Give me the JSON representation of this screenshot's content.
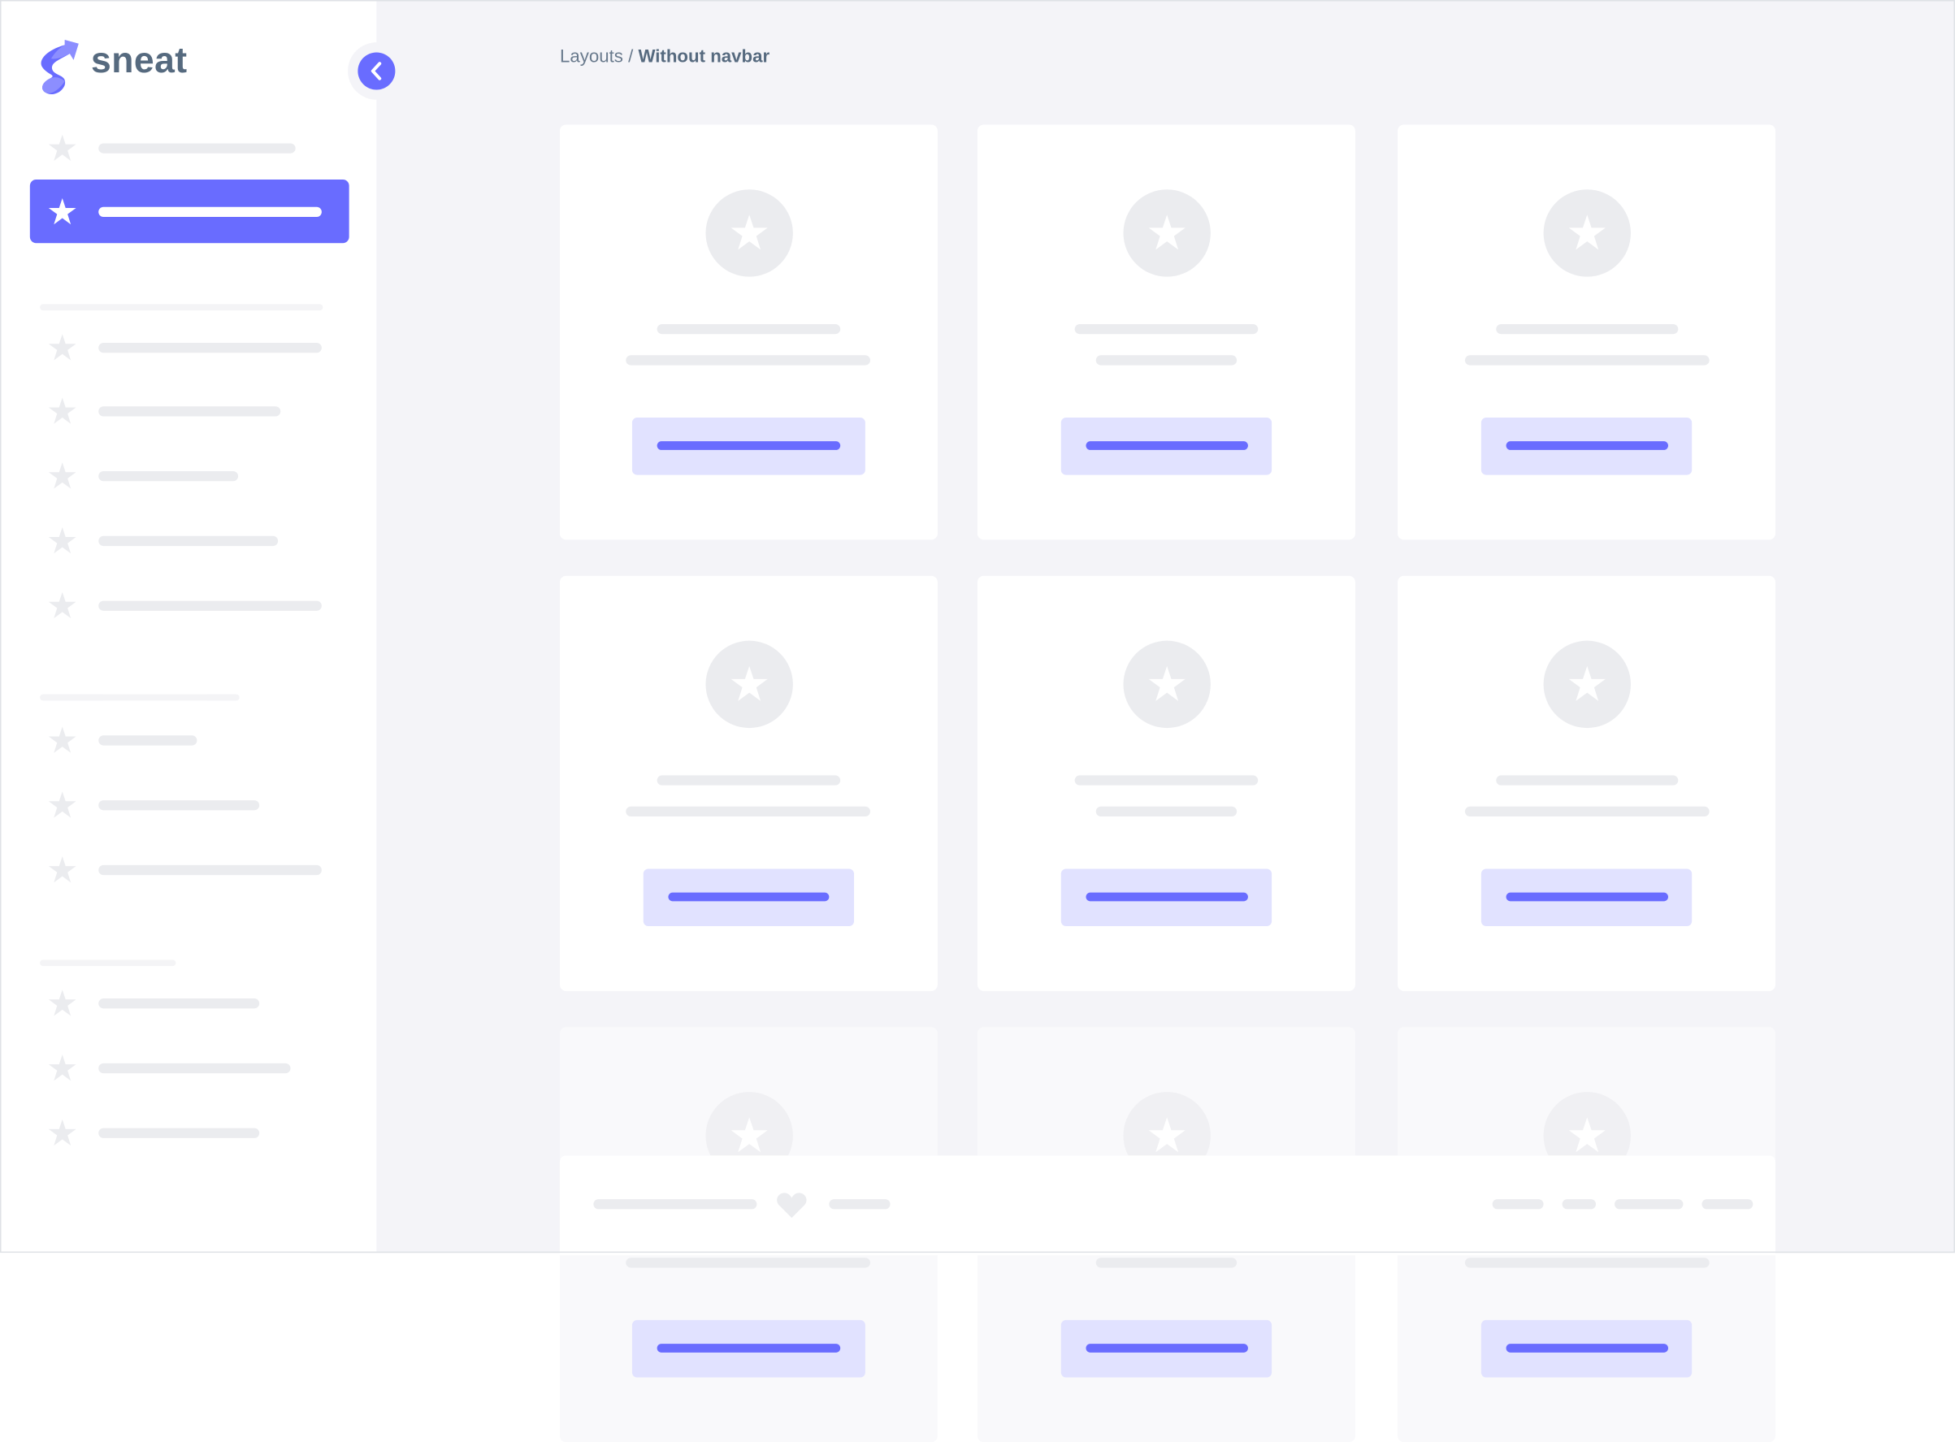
{
  "brand": {
    "name": "sneat",
    "logo_icon": "sneat-logo-icon",
    "accent": "#696cff"
  },
  "sidebar": {
    "toggle_icon": "chevron-left-icon",
    "active_index": 1,
    "item_icon": "star-icon"
  },
  "breadcrumb": {
    "parent": "Layouts",
    "separator": "/",
    "current": "Without navbar"
  },
  "colors": {
    "background": "#f4f4f8",
    "placeholder": "#ebecef",
    "button_bg": "#e1e2ff",
    "text": "#566a7f"
  },
  "footer": {
    "icon": "heart-icon"
  }
}
